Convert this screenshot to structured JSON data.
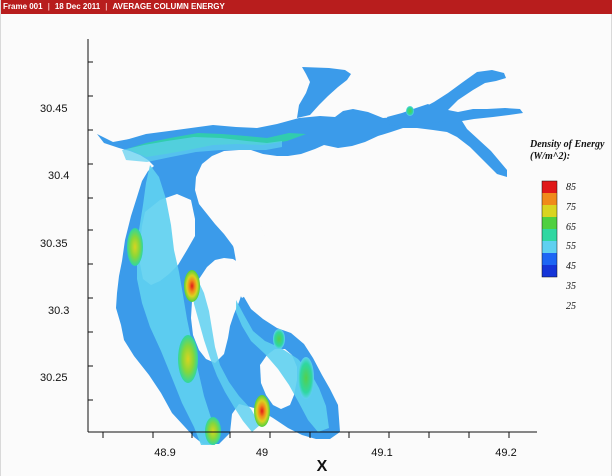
{
  "window": {
    "frame_label": "Frame 001",
    "date_label": "18 Dec 2011",
    "plot_title": "AVERAGE COLUMN ENERGY"
  },
  "chart_data": {
    "type": "heatmap",
    "title": "",
    "xlabel": "X",
    "ylabel": "",
    "xlim": [
      48.855,
      49.245
    ],
    "ylim": [
      30.204,
      30.48
    ],
    "x_ticks": [
      "48.9",
      "49",
      "49.1",
      "49.2"
    ],
    "y_ticks": [
      "30.25",
      "30.3",
      "30.35",
      "30.4",
      "30.45"
    ],
    "legend_title": "Density of Energy",
    "legend_unit": "(W/m^2):",
    "legend_levels": [
      "85",
      "75",
      "65",
      "55",
      "45",
      "35",
      "25"
    ],
    "colors": {
      "ocean_fill": "#3b9bea",
      "high": "#e01818",
      "orange": "#f08a1a",
      "yellow": "#d9d420",
      "green": "#4fd040",
      "teal": "#2fd7a1",
      "cyan": "#5fd0f0",
      "blue": "#1d66f4",
      "deep_blue": "#1535d8"
    }
  }
}
